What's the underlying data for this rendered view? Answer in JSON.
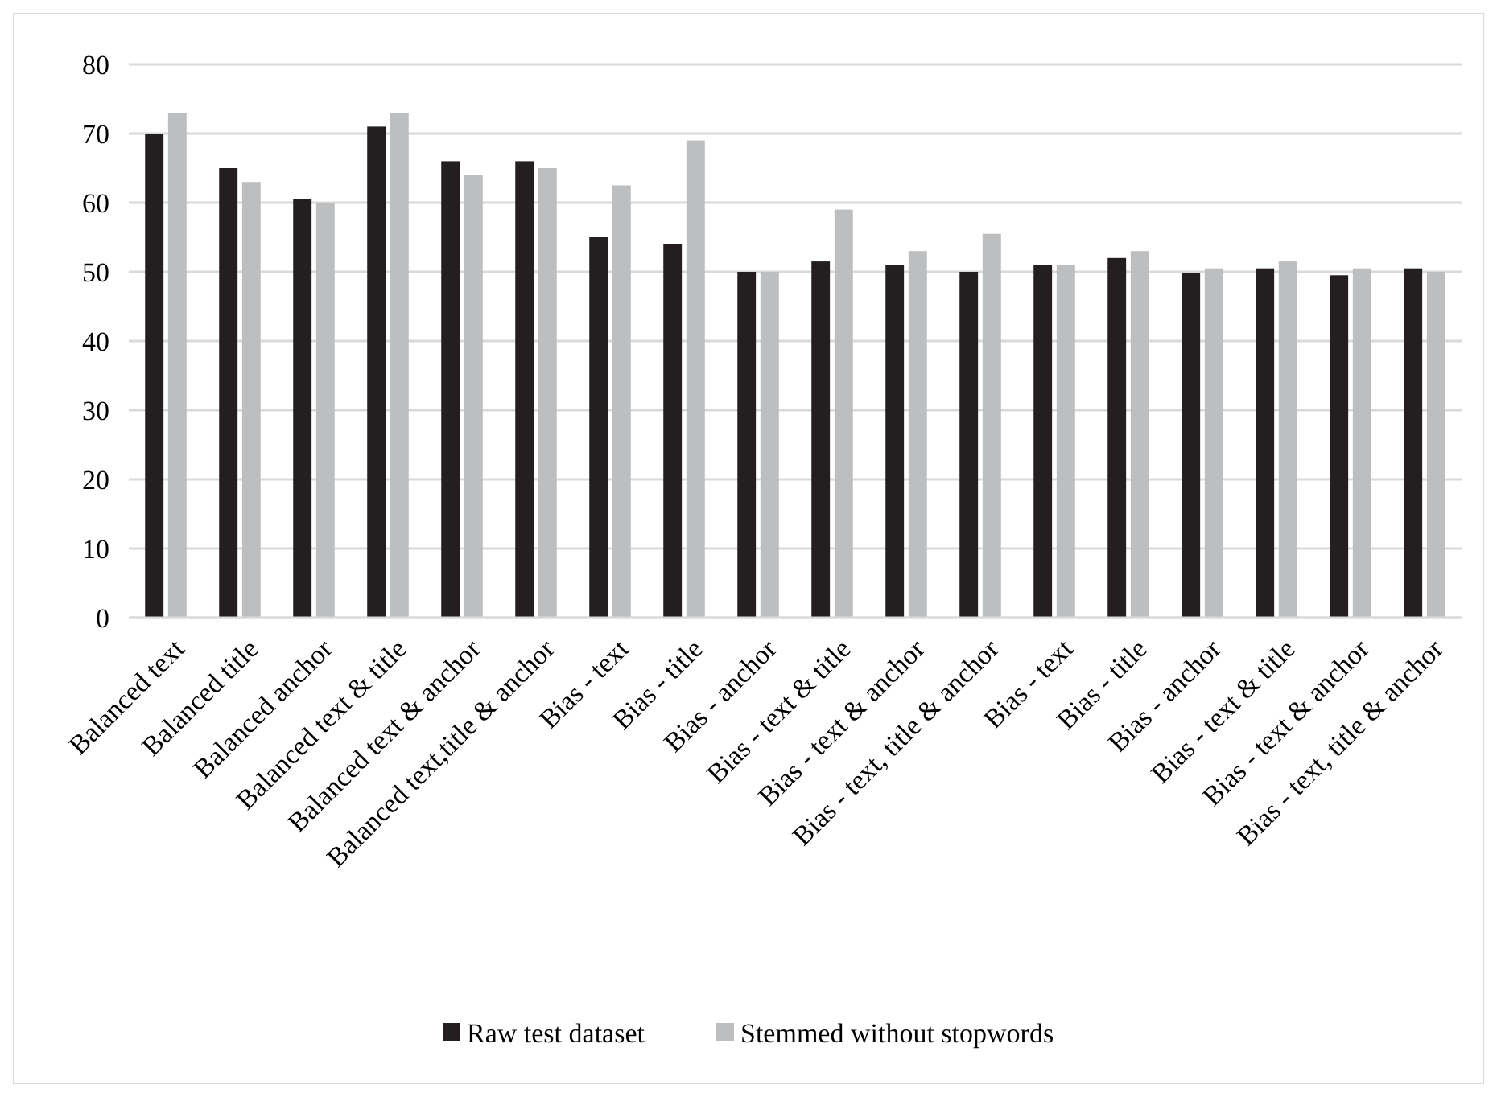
{
  "chart_data": {
    "type": "bar",
    "categories": [
      "Balanced text",
      "Balanced title",
      "Balanced anchor",
      "Balanced text & title",
      "Balanced text & anchor",
      "Balanced text,title & anchor",
      "Bias - text",
      "Bias - title",
      "Bias - anchor",
      "Bias - text & title",
      "Bias - text & anchor",
      "Bias - text, title & anchor",
      "Bias - text",
      "Bias - title",
      "Bias - anchor",
      "Bias - text & title",
      "Bias - text & anchor",
      "Bias - text, title & anchor"
    ],
    "series": [
      {
        "name": "Raw test dataset",
        "color": "#231f20",
        "values": [
          70,
          65,
          60.5,
          71,
          66,
          66,
          55,
          54,
          50,
          51.5,
          51,
          50,
          51,
          52,
          49.8,
          50.5,
          49.5,
          50.5
        ]
      },
      {
        "name": "Stemmed without stopwords",
        "color": "#bcbec0",
        "values": [
          73,
          63,
          60,
          73,
          64,
          65,
          62.5,
          69,
          50,
          59,
          53,
          55.5,
          51,
          53,
          50.5,
          51.5,
          50.5,
          50
        ]
      }
    ],
    "ylim": [
      0,
      80
    ],
    "yticks": [
      0,
      10,
      20,
      30,
      40,
      50,
      60,
      70,
      80
    ],
    "grid": "y",
    "legend": "bottom"
  }
}
